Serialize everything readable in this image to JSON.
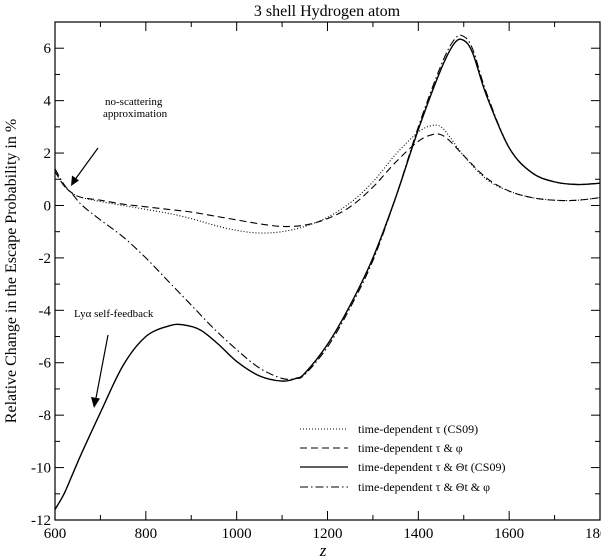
{
  "chart_data": {
    "type": "line",
    "title": "3 shell Hydrogen atom",
    "xlabel": "z",
    "ylabel": "Relative Change in the Escape Probability in %",
    "xlim": [
      600,
      1800
    ],
    "ylim": [
      -12,
      7
    ],
    "x_ticks": [
      600,
      800,
      1000,
      1200,
      1400,
      1600,
      1800
    ],
    "y_ticks": [
      -12,
      -10,
      -8,
      -6,
      -4,
      -2,
      0,
      2,
      4,
      6
    ],
    "grid": false,
    "legend_position": "bottom-right",
    "annotations": [
      {
        "lines": [
          "no-scattering",
          "approximation"
        ],
        "arrow_to": [
          635,
          0.7
        ]
      },
      {
        "text": "Lyα self-feedback",
        "arrow_to": [
          685,
          -7.9
        ]
      }
    ],
    "series": [
      {
        "name": "time-dependent τ (CS09)",
        "dash": "dotted",
        "x": [
          600,
          620,
          640,
          660,
          700,
          750,
          800,
          850,
          900,
          950,
          1000,
          1050,
          1100,
          1150,
          1200,
          1250,
          1300,
          1350,
          1400,
          1430,
          1450,
          1470,
          1500,
          1550,
          1600,
          1650,
          1700,
          1750,
          1800
        ],
        "y": [
          1.3,
          0.75,
          0.45,
          0.3,
          0.15,
          0.0,
          -0.15,
          -0.3,
          -0.5,
          -0.75,
          -0.95,
          -1.05,
          -1.0,
          -0.8,
          -0.45,
          0.1,
          0.9,
          1.95,
          2.8,
          3.05,
          3.0,
          2.6,
          1.9,
          1.0,
          0.55,
          0.3,
          0.2,
          0.2,
          0.3
        ]
      },
      {
        "name": "time-dependent τ & φ",
        "dash": "dashed",
        "x": [
          600,
          620,
          640,
          660,
          700,
          750,
          800,
          850,
          900,
          950,
          1000,
          1050,
          1100,
          1150,
          1200,
          1250,
          1300,
          1350,
          1400,
          1430,
          1450,
          1470,
          1500,
          1550,
          1600,
          1650,
          1700,
          1750,
          1800
        ],
        "y": [
          1.3,
          0.75,
          0.45,
          0.3,
          0.2,
          0.05,
          -0.05,
          -0.15,
          -0.25,
          -0.4,
          -0.55,
          -0.7,
          -0.8,
          -0.75,
          -0.5,
          -0.05,
          0.7,
          1.65,
          2.45,
          2.7,
          2.7,
          2.45,
          1.9,
          1.05,
          0.55,
          0.3,
          0.2,
          0.2,
          0.3
        ]
      },
      {
        "name": "time-dependent τ & Θt (CS09)",
        "dash": "solid",
        "x": [
          600,
          620,
          640,
          660,
          700,
          750,
          800,
          850,
          880,
          920,
          960,
          1000,
          1050,
          1100,
          1130,
          1150,
          1200,
          1250,
          1300,
          1350,
          1400,
          1450,
          1480,
          1500,
          1520,
          1550,
          1600,
          1650,
          1700,
          1750,
          1800
        ],
        "y": [
          -11.6,
          -11.0,
          -10.2,
          -9.4,
          -7.9,
          -6.1,
          -5.0,
          -4.6,
          -4.55,
          -4.75,
          -5.3,
          -5.95,
          -6.5,
          -6.7,
          -6.6,
          -6.4,
          -5.3,
          -3.8,
          -2.0,
          0.3,
          2.9,
          5.2,
          6.2,
          6.3,
          5.8,
          4.2,
          2.2,
          1.25,
          0.9,
          0.8,
          0.85
        ]
      },
      {
        "name": "time-dependent τ & Θt & φ",
        "dash": "dashdot",
        "x": [
          600,
          620,
          640,
          660,
          700,
          750,
          800,
          850,
          900,
          950,
          1000,
          1050,
          1100,
          1130,
          1150,
          1200,
          1250,
          1300,
          1350,
          1400,
          1450,
          1480,
          1500,
          1520,
          1550,
          1600,
          1650,
          1700,
          1750,
          1800
        ],
        "y": [
          1.4,
          0.8,
          0.4,
          0.0,
          -0.55,
          -1.2,
          -2.0,
          -2.9,
          -3.8,
          -4.7,
          -5.5,
          -6.2,
          -6.6,
          -6.6,
          -6.45,
          -5.4,
          -3.9,
          -2.1,
          0.3,
          3.0,
          5.35,
          6.35,
          6.45,
          5.95,
          4.3,
          2.2,
          1.25,
          0.9,
          0.8,
          0.85
        ]
      }
    ]
  }
}
